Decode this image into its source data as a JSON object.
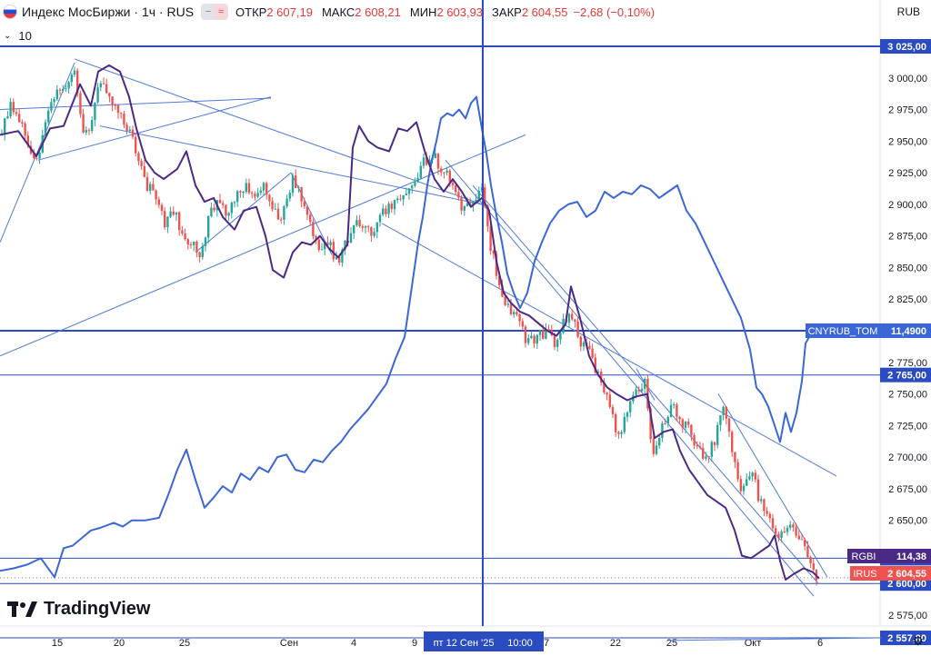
{
  "header": {
    "symbol": "Индекс МосБиржи · 1ч · RUS",
    "open_label": "ОТКР",
    "open_value": "2 607,19",
    "high_label": "МАКС",
    "high_value": "2 608,21",
    "low_label": "МИН",
    "low_value": "2 603,93",
    "close_label": "ЗАКР",
    "close_value": "2 604,55",
    "change": "−2,68 (−0,10%)",
    "indicator": "10"
  },
  "currency_label": "RUB",
  "logo_text": "TradingView",
  "crosshair_label": "пт 12 Сен '25",
  "crosshair_time": "10:00",
  "colors": {
    "up": "#26a69a",
    "down": "#ef5350",
    "line_blue": "#3b67d6",
    "line_purple": "#4a2a84",
    "hline": "#2a4cc0",
    "trend": "#4f7bd6"
  },
  "icons": {
    "chevron": "chevron-down-icon",
    "gear": "gear-icon",
    "flag": "russia-flag-icon"
  },
  "chart_data": {
    "type": "candlestick",
    "ylim": [
      2557,
      3040
    ],
    "x_tick_labels": [
      "15",
      "20",
      "25",
      "Сен",
      "4",
      "9",
      "7",
      "22",
      "25",
      "Окт",
      "6"
    ],
    "y_tick_labels": [
      "3 000,00",
      "2 975,00",
      "2 950,00",
      "2 925,00",
      "2 900,00",
      "2 875,00",
      "2 850,00",
      "2 825,00",
      "2 775,00",
      "2 750,00",
      "2 725,00",
      "2 700,00",
      "2 675,00",
      "2 650,00",
      "2 575,00"
    ],
    "y_ticks": [
      3000,
      2975,
      2950,
      2925,
      2900,
      2875,
      2850,
      2825,
      2775,
      2750,
      2725,
      2700,
      2675,
      2650,
      2575
    ],
    "price_levels": [
      {
        "value": 3025,
        "label": "3 025,00",
        "style": "thick"
      },
      {
        "value": 2800,
        "label": "2 800,00",
        "style": "thick"
      },
      {
        "value": 2765,
        "label": "2 765,00",
        "style": "thin"
      },
      {
        "value": 2620,
        "label": "2 620,00",
        "style": "thin"
      },
      {
        "value": 2600,
        "label": "2 600,00",
        "style": "thin"
      },
      {
        "value": 2557,
        "label": "2 557,00",
        "style": "thin"
      }
    ],
    "series_tags": [
      {
        "name": "CNYRUB_TOM",
        "value": "11,4900",
        "price": 2800,
        "color": "#3b67d6"
      },
      {
        "name": "RGBI",
        "value": "114,38",
        "price": 2617,
        "color": "#4a2a84"
      },
      {
        "name": "IRUS",
        "value": "2 604,55",
        "price": 2604.55,
        "color": "#ef5350"
      }
    ],
    "close_path": [
      [
        0,
        2955
      ],
      [
        10,
        2978
      ],
      [
        20,
        2968
      ],
      [
        32,
        2945
      ],
      [
        42,
        2935
      ],
      [
        52,
        2975
      ],
      [
        62,
        2985
      ],
      [
        72,
        2995
      ],
      [
        82,
        3010
      ],
      [
        92,
        2955
      ],
      [
        100,
        2965
      ],
      [
        110,
        3000
      ],
      [
        122,
        2985
      ],
      [
        132,
        2970
      ],
      [
        142,
        2960
      ],
      [
        152,
        2935
      ],
      [
        162,
        2915
      ],
      [
        172,
        2905
      ],
      [
        180,
        2885
      ],
      [
        190,
        2895
      ],
      [
        200,
        2880
      ],
      [
        210,
        2870
      ],
      [
        220,
        2860
      ],
      [
        230,
        2890
      ],
      [
        240,
        2905
      ],
      [
        250,
        2885
      ],
      [
        258,
        2905
      ],
      [
        268,
        2915
      ],
      [
        278,
        2905
      ],
      [
        290,
        2915
      ],
      [
        300,
        2895
      ],
      [
        310,
        2888
      ],
      [
        322,
        2920
      ],
      [
        332,
        2905
      ],
      [
        342,
        2882
      ],
      [
        352,
        2865
      ],
      [
        362,
        2870
      ],
      [
        372,
        2850
      ],
      [
        382,
        2872
      ],
      [
        392,
        2890
      ],
      [
        402,
        2882
      ],
      [
        410,
        2877
      ],
      [
        420,
        2895
      ],
      [
        432,
        2900
      ],
      [
        442,
        2905
      ],
      [
        452,
        2912
      ],
      [
        462,
        2930
      ],
      [
        472,
        2938
      ],
      [
        480,
        2935
      ],
      [
        490,
        2925
      ],
      [
        500,
        2915
      ],
      [
        510,
        2895
      ],
      [
        520,
        2900
      ],
      [
        530,
        2915
      ],
      [
        536,
        2880
      ],
      [
        542,
        2860
      ],
      [
        550,
        2830
      ],
      [
        560,
        2815
      ],
      [
        570,
        2810
      ],
      [
        580,
        2790
      ],
      [
        590,
        2795
      ],
      [
        600,
        2800
      ],
      [
        610,
        2790
      ],
      [
        620,
        2810
      ],
      [
        630,
        2808
      ],
      [
        640,
        2790
      ],
      [
        650,
        2780
      ],
      [
        660,
        2760
      ],
      [
        670,
        2740
      ],
      [
        680,
        2715
      ],
      [
        690,
        2735
      ],
      [
        700,
        2755
      ],
      [
        710,
        2760
      ],
      [
        718,
        2700
      ],
      [
        728,
        2725
      ],
      [
        738,
        2740
      ],
      [
        748,
        2730
      ],
      [
        758,
        2720
      ],
      [
        768,
        2705
      ],
      [
        778,
        2700
      ],
      [
        788,
        2718
      ],
      [
        796,
        2738
      ],
      [
        806,
        2700
      ],
      [
        816,
        2675
      ],
      [
        826,
        2690
      ],
      [
        834,
        2670
      ],
      [
        842,
        2660
      ],
      [
        850,
        2645
      ],
      [
        858,
        2638
      ],
      [
        866,
        2645
      ],
      [
        874,
        2640
      ],
      [
        884,
        2638
      ],
      [
        890,
        2615
      ],
      [
        896,
        2608
      ],
      [
        901,
        2604.55
      ]
    ],
    "rgbi_path": [
      [
        0,
        2955
      ],
      [
        20,
        2958
      ],
      [
        40,
        2938
      ],
      [
        55,
        2960
      ],
      [
        70,
        2962
      ],
      [
        88,
        2995
      ],
      [
        100,
        2978
      ],
      [
        108,
        3005
      ],
      [
        120,
        3010
      ],
      [
        132,
        3005
      ],
      [
        142,
        2985
      ],
      [
        150,
        2960
      ],
      [
        160,
        2935
      ],
      [
        170,
        2925
      ],
      [
        180,
        2920
      ],
      [
        195,
        2928
      ],
      [
        205,
        2942
      ],
      [
        215,
        2915
      ],
      [
        225,
        2902
      ],
      [
        235,
        2905
      ],
      [
        245,
        2890
      ],
      [
        258,
        2880
      ],
      [
        268,
        2895
      ],
      [
        282,
        2898
      ],
      [
        292,
        2875
      ],
      [
        300,
        2848
      ],
      [
        312,
        2842
      ],
      [
        322,
        2862
      ],
      [
        332,
        2870
      ],
      [
        342,
        2868
      ],
      [
        352,
        2875
      ],
      [
        362,
        2865
      ],
      [
        372,
        2858
      ],
      [
        382,
        2868
      ],
      [
        388,
        2945
      ],
      [
        395,
        2962
      ],
      [
        405,
        2950
      ],
      [
        415,
        2945
      ],
      [
        428,
        2942
      ],
      [
        438,
        2960
      ],
      [
        448,
        2958
      ],
      [
        458,
        2965
      ],
      [
        468,
        2940
      ],
      [
        478,
        2920
      ],
      [
        488,
        2910
      ],
      [
        498,
        2920
      ],
      [
        508,
        2910
      ],
      [
        518,
        2898
      ],
      [
        530,
        2905
      ],
      [
        538,
        2895
      ],
      [
        546,
        2855
      ],
      [
        554,
        2830
      ],
      [
        562,
        2822
      ],
      [
        572,
        2815
      ],
      [
        582,
        2812
      ],
      [
        592,
        2806
      ],
      [
        602,
        2800
      ],
      [
        612,
        2796
      ],
      [
        622,
        2805
      ],
      [
        628,
        2835
      ],
      [
        638,
        2810
      ],
      [
        648,
        2780
      ],
      [
        658,
        2765
      ],
      [
        668,
        2755
      ],
      [
        678,
        2750
      ],
      [
        690,
        2745
      ],
      [
        700,
        2748
      ],
      [
        712,
        2750
      ],
      [
        720,
        2715
      ],
      [
        730,
        2720
      ],
      [
        740,
        2722
      ],
      [
        748,
        2705
      ],
      [
        758,
        2690
      ],
      [
        768,
        2680
      ],
      [
        778,
        2670
      ],
      [
        788,
        2665
      ],
      [
        798,
        2660
      ],
      [
        808,
        2642
      ],
      [
        816,
        2622
      ],
      [
        826,
        2620
      ],
      [
        836,
        2625
      ],
      [
        846,
        2630
      ],
      [
        852,
        2638
      ],
      [
        858,
        2618
      ],
      [
        864,
        2603
      ],
      [
        874,
        2608
      ],
      [
        884,
        2612
      ],
      [
        894,
        2609
      ],
      [
        901,
        2604
      ]
    ],
    "cnyrub_path": [
      [
        0,
        2610
      ],
      [
        15,
        2612
      ],
      [
        30,
        2615
      ],
      [
        45,
        2620
      ],
      [
        60,
        2605
      ],
      [
        70,
        2628
      ],
      [
        80,
        2630
      ],
      [
        90,
        2636
      ],
      [
        100,
        2642
      ],
      [
        110,
        2644
      ],
      [
        125,
        2648
      ],
      [
        135,
        2645
      ],
      [
        145,
        2650
      ],
      [
        160,
        2650
      ],
      [
        175,
        2652
      ],
      [
        185,
        2670
      ],
      [
        195,
        2690
      ],
      [
        205,
        2706
      ],
      [
        215,
        2682
      ],
      [
        225,
        2660
      ],
      [
        235,
        2668
      ],
      [
        245,
        2677
      ],
      [
        255,
        2672
      ],
      [
        265,
        2687
      ],
      [
        275,
        2682
      ],
      [
        285,
        2692
      ],
      [
        295,
        2688
      ],
      [
        305,
        2700
      ],
      [
        315,
        2702
      ],
      [
        325,
        2690
      ],
      [
        335,
        2688
      ],
      [
        345,
        2698
      ],
      [
        355,
        2696
      ],
      [
        365,
        2705
      ],
      [
        375,
        2712
      ],
      [
        385,
        2722
      ],
      [
        395,
        2730
      ],
      [
        405,
        2738
      ],
      [
        415,
        2748
      ],
      [
        425,
        2758
      ],
      [
        435,
        2778
      ],
      [
        445,
        2795
      ],
      [
        450,
        2820
      ],
      [
        455,
        2845
      ],
      [
        460,
        2870
      ],
      [
        465,
        2890
      ],
      [
        470,
        2915
      ],
      [
        475,
        2935
      ],
      [
        480,
        2950
      ],
      [
        485,
        2968
      ],
      [
        492,
        2972
      ],
      [
        498,
        2970
      ],
      [
        505,
        2975
      ],
      [
        512,
        2968
      ],
      [
        518,
        2980
      ],
      [
        524,
        2985
      ],
      [
        530,
        2960
      ],
      [
        535,
        2940
      ],
      [
        540,
        2915
      ],
      [
        545,
        2895
      ],
      [
        552,
        2870
      ],
      [
        558,
        2845
      ],
      [
        565,
        2830
      ],
      [
        572,
        2818
      ],
      [
        580,
        2830
      ],
      [
        588,
        2855
      ],
      [
        596,
        2870
      ],
      [
        605,
        2885
      ],
      [
        615,
        2895
      ],
      [
        625,
        2900
      ],
      [
        635,
        2902
      ],
      [
        645,
        2890
      ],
      [
        655,
        2895
      ],
      [
        665,
        2910
      ],
      [
        675,
        2905
      ],
      [
        685,
        2910
      ],
      [
        695,
        2908
      ],
      [
        705,
        2915
      ],
      [
        715,
        2912
      ],
      [
        725,
        2905
      ],
      [
        735,
        2910
      ],
      [
        745,
        2915
      ],
      [
        755,
        2895
      ],
      [
        765,
        2885
      ],
      [
        775,
        2870
      ],
      [
        785,
        2855
      ],
      [
        795,
        2840
      ],
      [
        805,
        2825
      ],
      [
        815,
        2810
      ],
      [
        825,
        2785
      ],
      [
        832,
        2755
      ],
      [
        838,
        2750
      ],
      [
        845,
        2740
      ],
      [
        852,
        2725
      ],
      [
        858,
        2712
      ],
      [
        864,
        2735
      ],
      [
        870,
        2720
      ],
      [
        876,
        2735
      ],
      [
        882,
        2760
      ],
      [
        886,
        2790
      ],
      [
        890,
        2795
      ],
      [
        896,
        2800
      ],
      [
        901,
        2800
      ]
    ],
    "trendlines": [
      [
        [
          0,
          2975
        ],
        [
          298,
          2984
        ]
      ],
      [
        [
          42,
          2935
        ],
        [
          298,
          2985
        ]
      ],
      [
        [
          82,
          3015
        ],
        [
          530,
          2900
        ]
      ],
      [
        [
          0,
          2870
        ],
        [
          82,
          3012
        ]
      ],
      [
        [
          110,
          2962
        ],
        [
          530,
          2900
        ]
      ],
      [
        [
          0,
          2780
        ],
        [
          578,
          2955
        ]
      ],
      [
        [
          215,
          2862
        ],
        [
          320,
          2925
        ]
      ],
      [
        [
          320,
          2925
        ],
        [
          365,
          2860
        ]
      ],
      [
        [
          490,
          2935
        ],
        [
          895,
          2590
        ]
      ],
      [
        [
          420,
          2885
        ],
        [
          920,
          2685
        ]
      ],
      [
        [
          520,
          2915
        ],
        [
          900,
          2600
        ]
      ],
      [
        [
          790,
          2750
        ],
        [
          910,
          2605
        ]
      ],
      [
        [
          700,
          2770
        ],
        [
          720,
          2745
        ]
      ],
      [
        [
          735,
          2555
        ],
        [
          970,
          2557
        ]
      ]
    ]
  }
}
